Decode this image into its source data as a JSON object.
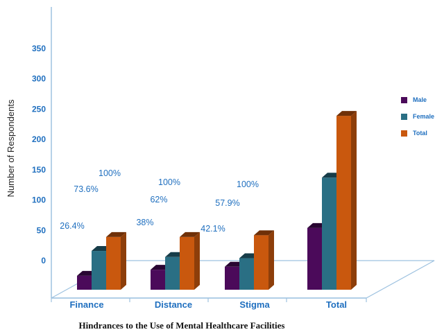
{
  "chart_data": {
    "type": "bar",
    "title": "Hindrances to the Use of Mental Healthcare Facilities",
    "xlabel": "",
    "ylabel": "Number of Respondents",
    "categories": [
      "Finance",
      "Distance",
      "Stigma",
      "Total"
    ],
    "y_ticks": [
      0,
      50,
      100,
      150,
      200,
      250,
      300,
      350
    ],
    "ylim": [
      0,
      350
    ],
    "grid": false,
    "legend_position": "right",
    "series": [
      {
        "name": "Male",
        "color": "#4b0a5a",
        "values": [
          23,
          33,
          38,
          102
        ],
        "labels": [
          "26.4%",
          "38%",
          "42.1%",
          ""
        ]
      },
      {
        "name": "Female",
        "color": "#2a6f84",
        "values": [
          64,
          54,
          52,
          185
        ],
        "labels": [
          "73.6%",
          "62%",
          "57.9%",
          ""
        ]
      },
      {
        "name": "Total",
        "color": "#c9580e",
        "values": [
          87,
          87,
          90,
          287
        ],
        "labels": [
          "100%",
          "100%",
          "100%",
          ""
        ]
      }
    ]
  }
}
